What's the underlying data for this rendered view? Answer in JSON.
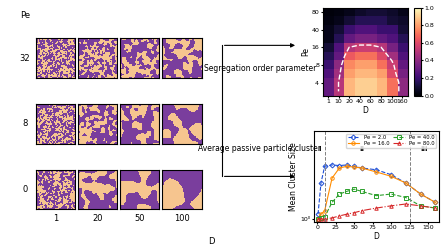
{
  "snapshots": {
    "ylabel": "Pe",
    "xlabel": "D",
    "rows": [
      32,
      8,
      0
    ],
    "columns": [
      1,
      20,
      50,
      100
    ],
    "colors": [
      "#7a3e9d",
      "#f6c58f"
    ]
  },
  "arrows": [
    "Segregation order parameter",
    "Average passive particle cluster"
  ],
  "chart_data": [
    {
      "type": "heatmap",
      "xlabel": "D",
      "ylabel": "Pe",
      "x_categories": [
        "1",
        "10",
        "20",
        "40",
        "60",
        "80",
        "100",
        "160"
      ],
      "y_categories": [
        null,
        "4",
        null,
        "8",
        null,
        "16",
        null,
        "40",
        null,
        "80"
      ],
      "cells": [
        [
          0.3,
          0.5,
          0.85,
          0.9,
          0.9,
          0.85,
          0.7,
          0.4
        ],
        [
          0.3,
          0.5,
          0.85,
          0.9,
          0.9,
          0.85,
          0.7,
          0.4
        ],
        [
          0.25,
          0.45,
          0.8,
          0.85,
          0.85,
          0.8,
          0.6,
          0.35
        ],
        [
          0.2,
          0.4,
          0.75,
          0.8,
          0.8,
          0.7,
          0.55,
          0.3
        ],
        [
          0.15,
          0.3,
          0.65,
          0.7,
          0.7,
          0.6,
          0.45,
          0.25
        ],
        [
          0.1,
          0.25,
          0.5,
          0.55,
          0.55,
          0.5,
          0.35,
          0.2
        ],
        [
          0.05,
          0.15,
          0.3,
          0.35,
          0.35,
          0.3,
          0.25,
          0.15
        ],
        [
          0.05,
          0.1,
          0.2,
          0.25,
          0.25,
          0.2,
          0.2,
          0.1
        ],
        [
          0.03,
          0.05,
          0.1,
          0.15,
          0.15,
          0.15,
          0.1,
          0.08
        ],
        [
          0.02,
          0.03,
          0.05,
          0.08,
          0.1,
          0.1,
          0.08,
          0.05
        ]
      ],
      "contour_level": 0.5,
      "colorbar_range": [
        0,
        1
      ],
      "colorbar_ticks": [
        {
          "value": 0,
          "label": "0.0"
        },
        {
          "value": 0.2,
          "label": "0.2"
        },
        {
          "value": 0.4,
          "label": "0.4"
        },
        {
          "value": 0.6,
          "label": "0.6"
        },
        {
          "value": 0.8,
          "label": "0.8"
        },
        {
          "value": 1,
          "label": "1.0"
        }
      ]
    },
    {
      "type": "line",
      "xlabel": "D",
      "ylabel": "Mean Cluster Size",
      "log": "y",
      "legend": "upper right",
      "x": [
        1,
        5,
        10,
        20,
        30,
        40,
        50,
        60,
        80,
        100,
        120,
        140,
        160
      ],
      "series": [
        {
          "name": "Pe = 2.0",
          "color": "#1f4fd6",
          "marker": "D",
          "line_style": "dashed",
          "values": [
            1.5,
            20,
            80,
            90,
            85,
            90,
            80,
            70,
            60,
            40,
            20,
            8,
            4
          ]
        },
        {
          "name": "Pe = 16.0",
          "color": "#ff8c00",
          "marker": "o",
          "line_style": "solid",
          "values": [
            1,
            1.5,
            2,
            30,
            70,
            80,
            75,
            70,
            50,
            35,
            20,
            8,
            4
          ]
        },
        {
          "name": "Pe = 40.0",
          "color": "#2ca02c",
          "marker": "s",
          "line_style": "dashed",
          "values": [
            1,
            1.1,
            1.2,
            4,
            8,
            10,
            12,
            10,
            7,
            8,
            6,
            3,
            2.5
          ]
        },
        {
          "name": "Pe = 80.0",
          "color": "#d62728",
          "marker": "^",
          "line_style": "dashdot",
          "values": [
            1,
            1,
            1,
            1.1,
            1.3,
            1.5,
            1.7,
            2,
            2.5,
            3,
            3.5,
            3,
            2.5
          ]
        }
      ],
      "xlim": [
        -5,
        165
      ],
      "xticks": [
        0,
        25,
        50,
        75,
        100,
        125,
        150
      ],
      "ylim": [
        0.8,
        1500
      ],
      "yticks": [
        {
          "value": 1,
          "label": "10⁰"
        }
      ],
      "regions": [
        {
          "label": "I",
          "x": 3
        },
        {
          "label": "II",
          "x": 60
        },
        {
          "label": "III",
          "x": 145
        }
      ],
      "region_bounds": [
        10,
        125
      ]
    }
  ]
}
